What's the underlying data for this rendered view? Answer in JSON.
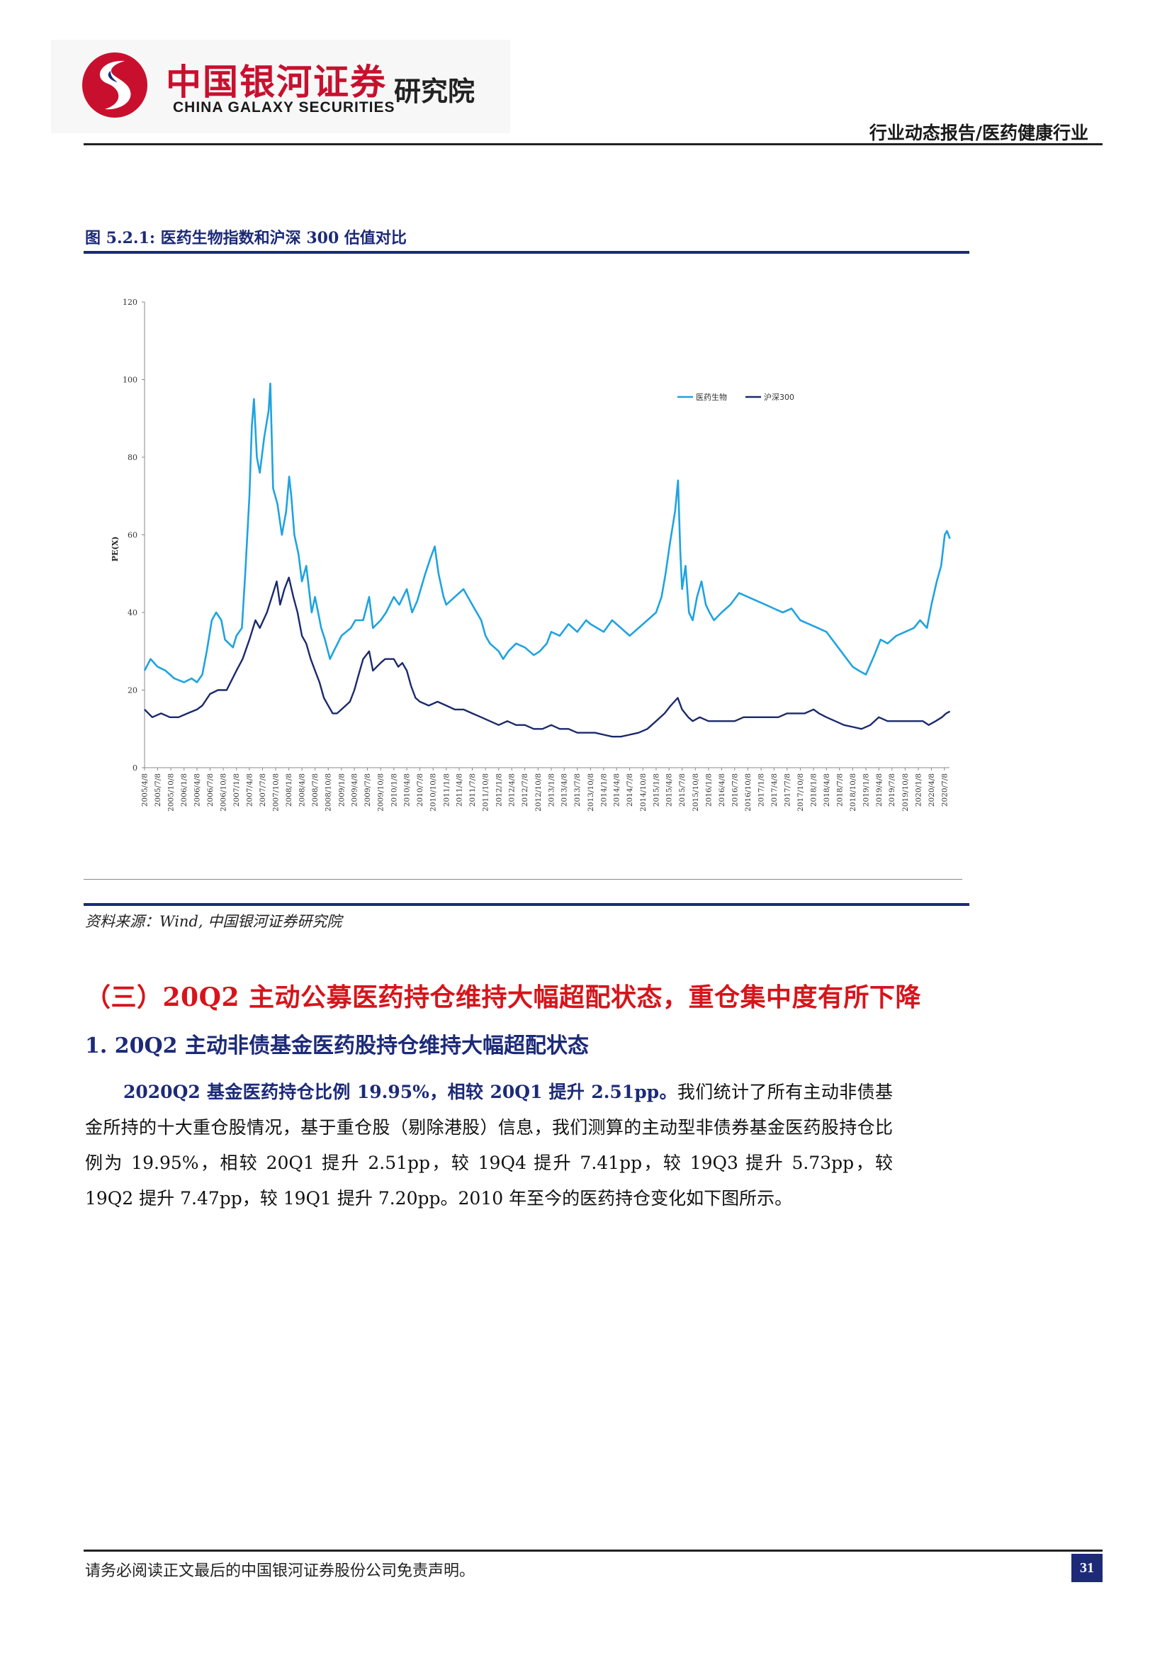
{
  "header": {
    "logo_cn": "中国银河证券",
    "logo_en": "CHINA GALAXY SECURITIES",
    "logo_institute": "研究院",
    "report_type": "行业动态报告/医药健康行业"
  },
  "figure": {
    "title": "图 5.2.1:  医药生物指数和沪深 300 估值对比",
    "source": "资料来源：Wind, 中国银河证券研究院"
  },
  "chart_data": {
    "type": "line",
    "title": "",
    "xlabel": "",
    "ylabel": "PE(X)",
    "ylim": [
      0,
      120
    ],
    "yticks": [
      0,
      20,
      40,
      60,
      80,
      100,
      120
    ],
    "xticks": [
      "2005/4/8",
      "2005/7/8",
      "2005/10/8",
      "2006/1/8",
      "2006/4/8",
      "2006/7/8",
      "2006/10/8",
      "2007/1/8",
      "2007/4/8",
      "2007/7/8",
      "2007/10/8",
      "2008/1/8",
      "2008/4/8",
      "2008/7/8",
      "2008/10/8",
      "2009/1/8",
      "2009/4/8",
      "2009/7/8",
      "2009/10/8",
      "2010/1/8",
      "2010/4/8",
      "2010/7/8",
      "2010/10/8",
      "2011/1/8",
      "2011/4/8",
      "2011/7/8",
      "2011/10/8",
      "2012/1/8",
      "2012/4/8",
      "2012/7/8",
      "2012/10/8",
      "2013/1/8",
      "2013/4/8",
      "2013/7/8",
      "2013/10/8",
      "2014/1/8",
      "2014/4/8",
      "2014/7/8",
      "2014/10/8",
      "2015/1/8",
      "2015/4/8",
      "2015/7/8",
      "2015/10/8",
      "2016/1/8",
      "2016/4/8",
      "2016/7/8",
      "2016/10/8",
      "2017/1/8",
      "2017/4/8",
      "2017/7/8",
      "2017/10/8",
      "2018/1/8",
      "2018/4/8",
      "2018/7/8",
      "2018/10/8",
      "2019/1/8",
      "2019/4/8",
      "2019/7/8",
      "2019/10/8",
      "2020/1/8",
      "2020/4/8",
      "2020/7/8"
    ],
    "legend_position": "top-right",
    "series": [
      {
        "name": "医药生物",
        "color": "#1fa3e0",
        "points": [
          [
            "2005-04-08",
            25
          ],
          [
            "2005-05-20",
            28
          ],
          [
            "2005-07-08",
            26
          ],
          [
            "2005-09-01",
            25
          ],
          [
            "2005-11-01",
            23
          ],
          [
            "2006-01-08",
            22
          ],
          [
            "2006-03-01",
            23
          ],
          [
            "2006-04-08",
            22
          ],
          [
            "2006-05-15",
            24
          ],
          [
            "2006-06-15",
            30
          ],
          [
            "2006-07-20",
            38
          ],
          [
            "2006-08-20",
            40
          ],
          [
            "2006-09-25",
            38
          ],
          [
            "2006-10-20",
            33
          ],
          [
            "2006-12-15",
            31
          ],
          [
            "2007-01-08",
            34
          ],
          [
            "2007-02-15",
            36
          ],
          [
            "2007-03-10",
            50
          ],
          [
            "2007-04-08",
            70
          ],
          [
            "2007-04-25",
            88
          ],
          [
            "2007-05-10",
            95
          ],
          [
            "2007-05-30",
            80
          ],
          [
            "2007-06-20",
            76
          ],
          [
            "2007-07-20",
            85
          ],
          [
            "2007-08-20",
            92
          ],
          [
            "2007-09-01",
            99
          ],
          [
            "2007-09-20",
            72
          ],
          [
            "2007-10-20",
            68
          ],
          [
            "2007-11-20",
            60
          ],
          [
            "2007-12-20",
            66
          ],
          [
            "2008-01-10",
            75
          ],
          [
            "2008-01-25",
            70
          ],
          [
            "2008-02-15",
            60
          ],
          [
            "2008-03-15",
            55
          ],
          [
            "2008-04-08",
            48
          ],
          [
            "2008-05-08",
            52
          ],
          [
            "2008-06-15",
            40
          ],
          [
            "2008-07-08",
            44
          ],
          [
            "2008-08-20",
            36
          ],
          [
            "2008-09-15",
            33
          ],
          [
            "2008-10-20",
            28
          ],
          [
            "2008-11-15",
            30
          ],
          [
            "2009-01-08",
            34
          ],
          [
            "2009-03-15",
            36
          ],
          [
            "2009-04-15",
            38
          ],
          [
            "2009-06-08",
            38
          ],
          [
            "2009-07-20",
            44
          ],
          [
            "2009-08-15",
            36
          ],
          [
            "2009-10-08",
            38
          ],
          [
            "2009-11-15",
            40
          ],
          [
            "2010-01-08",
            44
          ],
          [
            "2010-02-15",
            42
          ],
          [
            "2010-04-08",
            46
          ],
          [
            "2010-05-15",
            40
          ],
          [
            "2010-06-20",
            43
          ],
          [
            "2010-08-15",
            50
          ],
          [
            "2010-09-20",
            54
          ],
          [
            "2010-10-20",
            57
          ],
          [
            "2010-11-15",
            50
          ],
          [
            "2010-12-20",
            44
          ],
          [
            "2011-01-08",
            42
          ],
          [
            "2011-03-08",
            44
          ],
          [
            "2011-05-08",
            46
          ],
          [
            "2011-07-08",
            42
          ],
          [
            "2011-09-08",
            38
          ],
          [
            "2011-10-08",
            34
          ],
          [
            "2011-11-08",
            32
          ],
          [
            "2012-01-08",
            30
          ],
          [
            "2012-02-08",
            28
          ],
          [
            "2012-03-15",
            30
          ],
          [
            "2012-05-08",
            32
          ],
          [
            "2012-07-08",
            31
          ],
          [
            "2012-09-08",
            29
          ],
          [
            "2012-10-20",
            30
          ],
          [
            "2012-12-08",
            32
          ],
          [
            "2013-01-08",
            35
          ],
          [
            "2013-03-08",
            34
          ],
          [
            "2013-05-08",
            37
          ],
          [
            "2013-07-08",
            35
          ],
          [
            "2013-09-08",
            38
          ],
          [
            "2013-10-08",
            37
          ],
          [
            "2014-01-08",
            35
          ],
          [
            "2014-03-08",
            38
          ],
          [
            "2014-05-08",
            36
          ],
          [
            "2014-07-08",
            34
          ],
          [
            "2014-09-08",
            36
          ],
          [
            "2014-11-08",
            38
          ],
          [
            "2015-01-08",
            40
          ],
          [
            "2015-02-15",
            44
          ],
          [
            "2015-03-15",
            50
          ],
          [
            "2015-04-15",
            58
          ],
          [
            "2015-05-20",
            66
          ],
          [
            "2015-06-10",
            74
          ],
          [
            "2015-06-25",
            56
          ],
          [
            "2015-07-08",
            46
          ],
          [
            "2015-08-01",
            52
          ],
          [
            "2015-08-25",
            40
          ],
          [
            "2015-09-20",
            38
          ],
          [
            "2015-10-20",
            44
          ],
          [
            "2015-11-20",
            48
          ],
          [
            "2015-12-20",
            42
          ],
          [
            "2016-01-15",
            40
          ],
          [
            "2016-02-15",
            38
          ],
          [
            "2016-04-08",
            40
          ],
          [
            "2016-06-08",
            42
          ],
          [
            "2016-08-08",
            45
          ],
          [
            "2016-10-08",
            44
          ],
          [
            "2016-12-08",
            43
          ],
          [
            "2017-02-08",
            42
          ],
          [
            "2017-04-08",
            41
          ],
          [
            "2017-06-08",
            40
          ],
          [
            "2017-08-08",
            41
          ],
          [
            "2017-10-08",
            38
          ],
          [
            "2017-12-08",
            37
          ],
          [
            "2018-02-08",
            36
          ],
          [
            "2018-04-08",
            35
          ],
          [
            "2018-06-08",
            32
          ],
          [
            "2018-08-08",
            29
          ],
          [
            "2018-10-08",
            26
          ],
          [
            "2018-11-20",
            25
          ],
          [
            "2019-01-08",
            24
          ],
          [
            "2019-03-08",
            29
          ],
          [
            "2019-04-20",
            33
          ],
          [
            "2019-06-08",
            32
          ],
          [
            "2019-08-08",
            34
          ],
          [
            "2019-10-08",
            35
          ],
          [
            "2019-12-08",
            36
          ],
          [
            "2020-01-20",
            38
          ],
          [
            "2020-03-08",
            36
          ],
          [
            "2020-04-08",
            42
          ],
          [
            "2020-05-15",
            48
          ],
          [
            "2020-06-15",
            52
          ],
          [
            "2020-07-10",
            60
          ],
          [
            "2020-07-25",
            61
          ],
          [
            "2020-08-15",
            59
          ]
        ]
      },
      {
        "name": "沪深300",
        "color": "#1b2a6b",
        "points": [
          [
            "2005-04-08",
            15
          ],
          [
            "2005-06-01",
            13
          ],
          [
            "2005-08-01",
            14
          ],
          [
            "2005-10-01",
            13
          ],
          [
            "2005-12-01",
            13
          ],
          [
            "2006-02-01",
            14
          ],
          [
            "2006-04-08",
            15
          ],
          [
            "2006-05-15",
            16
          ],
          [
            "2006-07-08",
            19
          ],
          [
            "2006-09-01",
            20
          ],
          [
            "2006-11-01",
            20
          ],
          [
            "2007-01-08",
            25
          ],
          [
            "2007-02-20",
            28
          ],
          [
            "2007-04-08",
            33
          ],
          [
            "2007-05-20",
            38
          ],
          [
            "2007-06-20",
            36
          ],
          [
            "2007-08-08",
            40
          ],
          [
            "2007-09-20",
            45
          ],
          [
            "2007-10-15",
            48
          ],
          [
            "2007-11-08",
            42
          ],
          [
            "2007-12-08",
            46
          ],
          [
            "2008-01-08",
            49
          ],
          [
            "2008-02-08",
            44
          ],
          [
            "2008-03-08",
            40
          ],
          [
            "2008-04-08",
            34
          ],
          [
            "2008-05-08",
            32
          ],
          [
            "2008-06-08",
            28
          ],
          [
            "2008-07-08",
            25
          ],
          [
            "2008-08-08",
            22
          ],
          [
            "2008-09-08",
            18
          ],
          [
            "2008-10-08",
            16
          ],
          [
            "2008-11-08",
            14
          ],
          [
            "2008-12-08",
            14
          ],
          [
            "2009-01-08",
            15
          ],
          [
            "2009-03-08",
            17
          ],
          [
            "2009-04-08",
            20
          ],
          [
            "2009-05-08",
            24
          ],
          [
            "2009-06-08",
            28
          ],
          [
            "2009-07-20",
            30
          ],
          [
            "2009-08-15",
            25
          ],
          [
            "2009-10-08",
            27
          ],
          [
            "2009-11-08",
            28
          ],
          [
            "2010-01-08",
            28
          ],
          [
            "2010-02-08",
            26
          ],
          [
            "2010-03-08",
            27
          ],
          [
            "2010-04-08",
            25
          ],
          [
            "2010-05-08",
            21
          ],
          [
            "2010-06-08",
            18
          ],
          [
            "2010-07-08",
            17
          ],
          [
            "2010-09-08",
            16
          ],
          [
            "2010-11-08",
            17
          ],
          [
            "2011-01-08",
            16
          ],
          [
            "2011-03-08",
            15
          ],
          [
            "2011-05-08",
            15
          ],
          [
            "2011-07-08",
            14
          ],
          [
            "2011-09-08",
            13
          ],
          [
            "2011-11-08",
            12
          ],
          [
            "2012-01-08",
            11
          ],
          [
            "2012-03-08",
            12
          ],
          [
            "2012-05-08",
            11
          ],
          [
            "2012-07-08",
            11
          ],
          [
            "2012-09-08",
            10
          ],
          [
            "2012-11-08",
            10
          ],
          [
            "2013-01-08",
            11
          ],
          [
            "2013-03-08",
            10
          ],
          [
            "2013-05-08",
            10
          ],
          [
            "2013-07-08",
            9
          ],
          [
            "2013-09-08",
            9
          ],
          [
            "2013-11-08",
            9
          ],
          [
            "2014-01-08",
            8.5
          ],
          [
            "2014-03-08",
            8
          ],
          [
            "2014-05-08",
            8
          ],
          [
            "2014-07-08",
            8.5
          ],
          [
            "2014-09-08",
            9
          ],
          [
            "2014-11-08",
            10
          ],
          [
            "2015-01-08",
            12
          ],
          [
            "2015-03-08",
            14
          ],
          [
            "2015-04-20",
            16
          ],
          [
            "2015-06-08",
            18
          ],
          [
            "2015-07-08",
            15
          ],
          [
            "2015-08-20",
            13
          ],
          [
            "2015-09-20",
            12
          ],
          [
            "2015-11-08",
            13
          ],
          [
            "2016-01-08",
            12
          ],
          [
            "2016-03-08",
            12
          ],
          [
            "2016-05-08",
            12
          ],
          [
            "2016-07-08",
            12
          ],
          [
            "2016-09-08",
            13
          ],
          [
            "2016-11-08",
            13
          ],
          [
            "2017-01-08",
            13
          ],
          [
            "2017-03-08",
            13
          ],
          [
            "2017-05-08",
            13
          ],
          [
            "2017-07-08",
            14
          ],
          [
            "2017-09-08",
            14
          ],
          [
            "2017-11-08",
            14
          ],
          [
            "2018-01-08",
            15
          ],
          [
            "2018-02-15",
            14
          ],
          [
            "2018-04-08",
            13
          ],
          [
            "2018-06-08",
            12
          ],
          [
            "2018-08-08",
            11
          ],
          [
            "2018-10-08",
            10.5
          ],
          [
            "2018-12-08",
            10
          ],
          [
            "2019-02-08",
            11
          ],
          [
            "2019-04-08",
            13
          ],
          [
            "2019-06-08",
            12
          ],
          [
            "2019-08-08",
            12
          ],
          [
            "2019-10-08",
            12
          ],
          [
            "2019-12-08",
            12
          ],
          [
            "2020-02-08",
            12
          ],
          [
            "2020-03-20",
            11
          ],
          [
            "2020-05-08",
            12
          ],
          [
            "2020-06-20",
            13
          ],
          [
            "2020-07-20",
            14
          ],
          [
            "2020-08-15",
            14.5
          ]
        ]
      }
    ]
  },
  "section": {
    "heading": "（三）20Q2 主动公募医药持仓维持大幅超配状态，重仓集中度有所下降",
    "subheading": "1. 20Q2 主动非债基金医药股持仓维持大幅超配状态",
    "para_bold": "2020Q2 基金医药持仓比例 19.95%，相较 20Q1 提升 2.51pp。",
    "para_rest": "我们统计了所有主动非债基金所持的十大重仓股情况，基于重仓股（剔除港股）信息，我们测算的主动型非债券基金医药股持仓比例为 19.95%，相较 20Q1 提升 2.51pp，较 19Q4 提升 7.41pp，较 19Q3 提升 5.73pp，较 19Q2 提升 7.47pp，较 19Q1 提升 7.20pp。2010 年至今的医药持仓变化如下图所示。"
  },
  "footer": {
    "disclaimer": "请务必阅读正文最后的中国银河证券股份公司免责声明。",
    "page_number": "31"
  }
}
